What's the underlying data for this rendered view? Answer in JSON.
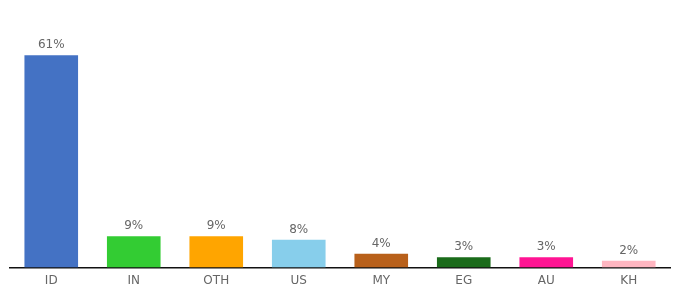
{
  "chart_data": {
    "type": "bar",
    "categories": [
      "ID",
      "IN",
      "OTH",
      "US",
      "MY",
      "EG",
      "AU",
      "KH"
    ],
    "values": [
      61,
      9,
      9,
      8,
      4,
      3,
      3,
      2
    ],
    "colors": [
      "#4472c4",
      "#33cc33",
      "#ffa500",
      "#87ceeb",
      "#b8601a",
      "#1a6b1a",
      "#ff1493",
      "#ffb6c1"
    ],
    "ylim": [
      0,
      70
    ],
    "data_labels": true,
    "value_labels": [
      "61%",
      "9%",
      "9%",
      "8%",
      "4%",
      "3%",
      "3%",
      "2%"
    ],
    "tick_labels": "x",
    "grid": false
  }
}
